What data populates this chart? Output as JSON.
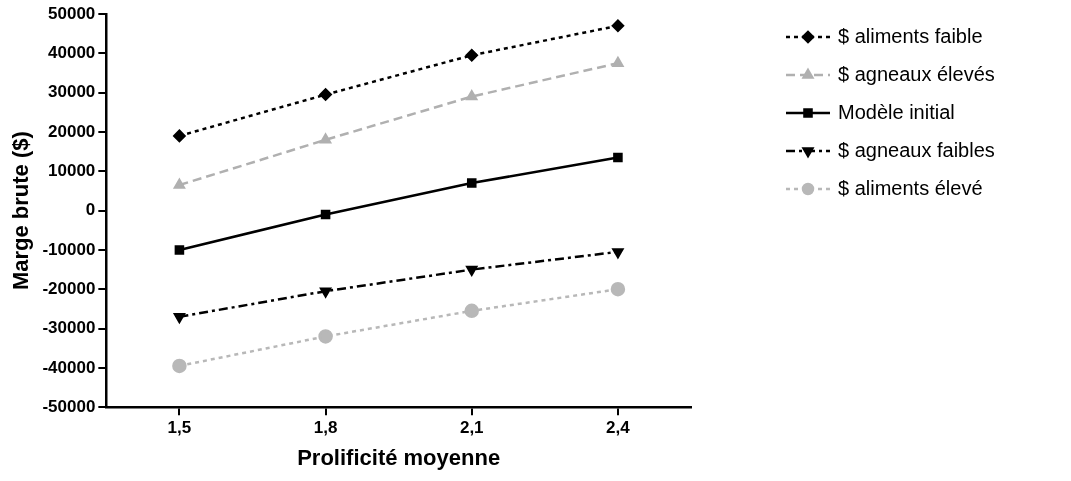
{
  "chart_data": {
    "type": "line",
    "xlabel": "Prolificité moyenne",
    "ylabel": "Marge brute ($)",
    "categories": [
      "1,5",
      "1,8",
      "2,1",
      "2,4"
    ],
    "ylim": [
      -50000,
      50000
    ],
    "yticks": [
      -50000,
      -40000,
      -30000,
      -20000,
      -10000,
      0,
      10000,
      20000,
      30000,
      40000,
      50000
    ],
    "grid": false,
    "legend": "right",
    "series": [
      {
        "name": "$ aliments faible",
        "color": "#000000",
        "marker": "diamond",
        "line_style": "dotted",
        "values": [
          19000,
          29500,
          39500,
          47000
        ]
      },
      {
        "name": "$ agneaux élevés",
        "color": "#b0b0b0",
        "marker": "triangle",
        "line_style": "dashed",
        "values": [
          6500,
          18000,
          29000,
          37500
        ]
      },
      {
        "name": "Modèle initial",
        "color": "#000000",
        "marker": "square",
        "line_style": "solid",
        "values": [
          -10000,
          -1000,
          7000,
          13500
        ]
      },
      {
        "name": "$ agneaux faibles",
        "color": "#000000",
        "marker": "triangle-down",
        "line_style": "dashdot",
        "values": [
          -27000,
          -20500,
          -15000,
          -10500
        ]
      },
      {
        "name": "$ aliments élevé",
        "color": "#b8b8b8",
        "marker": "circle",
        "line_style": "dotted",
        "values": [
          -39500,
          -32000,
          -25500,
          -20000
        ]
      }
    ]
  }
}
